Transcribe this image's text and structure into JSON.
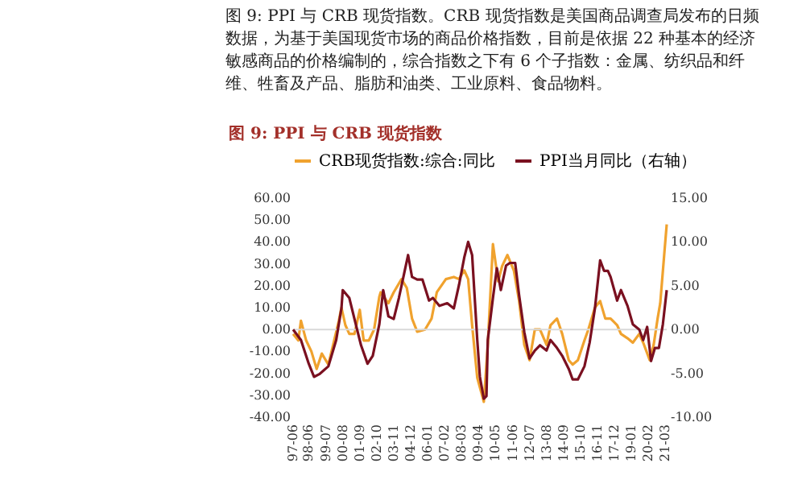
{
  "chart_data": {
    "type": "line",
    "title": "图 9: PPI 与 CRB 现货指数",
    "annotations": [
      "图 9: PPI 与 CRB 现货指数。CRB 现货指数是美国商品调查局发布的日频数据，为基于美国现货市场的商品价格指数，目前是依据 22 种基本的经济敏感商品的价格编制的，综合指数之下有 6 个子指数：金属、纺织品和纤维、牲畜及产品、脂肪和油类、工业原料、食品物料。"
    ],
    "series": [
      {
        "name": "CRB现货指数:综合:同比",
        "color": "#f0a22e",
        "x": [
          "1997-06",
          "1997-10",
          "1997-12",
          "1998-04",
          "1998-08",
          "1998-12",
          "1999-04",
          "1999-09",
          "2000-01",
          "2000-05",
          "2000-07",
          "2000-10",
          "2001-01",
          "2001-05",
          "2001-09",
          "2001-12",
          "2002-04",
          "2002-08",
          "2002-12",
          "2003-01",
          "2003-07",
          "2003-11",
          "2004-05",
          "2004-09",
          "2005-01",
          "2005-05",
          "2005-11",
          "2006-04",
          "2006-08",
          "2007-03",
          "2007-09",
          "2008-01",
          "2008-05",
          "2008-08",
          "2008-11",
          "2009-03",
          "2009-08",
          "2009-11",
          "2010-03",
          "2010-07",
          "2010-10",
          "2011-02",
          "2011-07",
          "2011-11",
          "2012-03",
          "2012-07",
          "2012-11",
          "2013-03",
          "2013-08",
          "2013-11",
          "2014-04",
          "2014-08",
          "2015-01",
          "2015-04",
          "2015-08",
          "2016-01",
          "2016-04",
          "2016-09",
          "2017-01",
          "2017-05",
          "2017-09",
          "2018-02",
          "2018-05",
          "2018-10",
          "2019-02",
          "2019-07",
          "2019-10",
          "2020-03",
          "2020-06",
          "2020-09",
          "2020-11",
          "2021-02",
          "2021-04"
        ],
        "values": [
          -2,
          -5,
          4,
          -5,
          -10,
          -18,
          -11,
          -16,
          -6,
          4,
          10,
          2,
          -2,
          -2,
          9,
          -5,
          -5,
          0,
          15,
          17,
          12,
          17,
          23,
          19,
          5,
          -1,
          0,
          5,
          17,
          23,
          24,
          23,
          27,
          23,
          2,
          -22,
          -33,
          -7,
          39,
          22,
          29,
          34,
          27,
          13,
          -7,
          -14,
          0,
          0,
          -7,
          2,
          5,
          -2,
          -14,
          -16,
          -14,
          -5,
          0,
          10,
          13,
          5,
          5,
          2,
          -2,
          -4,
          -6,
          -2,
          -6,
          -14,
          -7,
          5,
          12,
          34,
          48
        ]
      },
      {
        "name": "PPI当月同比（右轴）",
        "color": "#7a1020",
        "axis": "y2",
        "x": [
          "1997-06",
          "1997-12",
          "1998-06",
          "1998-10",
          "1999-02",
          "1999-09",
          "2000-03",
          "2000-07",
          "2000-08",
          "2001-01",
          "2001-05",
          "2001-10",
          "2002-03",
          "2002-07",
          "2002-12",
          "2003-03",
          "2003-07",
          "2003-11",
          "2004-03",
          "2004-07",
          "2004-10",
          "2005-01",
          "2005-05",
          "2005-09",
          "2006-02",
          "2006-05",
          "2006-10",
          "2007-04",
          "2007-09",
          "2008-01",
          "2008-05",
          "2008-08",
          "2008-11",
          "2009-03",
          "2009-05",
          "2009-08",
          "2009-10",
          "2009-11",
          "2010-03",
          "2010-06",
          "2010-09",
          "2011-01",
          "2011-04",
          "2011-08",
          "2011-11",
          "2012-03",
          "2012-07",
          "2012-11",
          "2013-03",
          "2013-08",
          "2013-11",
          "2014-04",
          "2014-08",
          "2015-01",
          "2015-04",
          "2015-08",
          "2016-01",
          "2016-05",
          "2016-09",
          "2017-01",
          "2017-04",
          "2017-07",
          "2017-09",
          "2018-02",
          "2018-05",
          "2018-10",
          "2019-02",
          "2019-07",
          "2019-10",
          "2020-01",
          "2020-04",
          "2020-07",
          "2020-10",
          "2021-01",
          "2021-04"
        ],
        "values": [
          0,
          -1.2,
          -3.9,
          -5.4,
          -5.1,
          -4.2,
          -1.2,
          2.4,
          4.5,
          3.6,
          1.2,
          -1.8,
          -3.9,
          -3.0,
          0.6,
          4.5,
          1.5,
          1.2,
          3.6,
          6.4,
          8.5,
          6.0,
          5.7,
          5.7,
          3.3,
          3.6,
          2.7,
          3.0,
          2.4,
          5.1,
          8.2,
          10.0,
          8.5,
          -1.2,
          -5.4,
          -7.9,
          -7.6,
          -1.2,
          3.6,
          7.0,
          4.5,
          7.3,
          7.6,
          7.6,
          3.9,
          -0.3,
          -3.3,
          -2.4,
          -1.8,
          -2.4,
          -1.2,
          -2.1,
          -3.0,
          -4.5,
          -5.7,
          -5.7,
          -4.2,
          -1.5,
          2.4,
          7.9,
          6.7,
          6.7,
          6.0,
          3.3,
          4.5,
          2.7,
          0.6,
          0,
          -1.2,
          0.3,
          -3.6,
          -2.1,
          -2.1,
          0.6,
          4.5
        ]
      }
    ],
    "xlim": [
      "1997-06",
      "2021-04"
    ],
    "xticks": [
      {
        "value": "1997-06",
        "label": "97-06"
      },
      {
        "value": "1998-06",
        "label": "98-06"
      },
      {
        "value": "1999-07",
        "label": "99-07"
      },
      {
        "value": "2000-08",
        "label": "00-08"
      },
      {
        "value": "2001-09",
        "label": "01-09"
      },
      {
        "value": "2002-10",
        "label": "02-10"
      },
      {
        "value": "2003-11",
        "label": "03-11"
      },
      {
        "value": "2004-12",
        "label": "04-12"
      },
      {
        "value": "2006-01",
        "label": "06-01"
      },
      {
        "value": "2007-02",
        "label": "07-02"
      },
      {
        "value": "2008-03",
        "label": "08-03"
      },
      {
        "value": "2009-04",
        "label": "09-04"
      },
      {
        "value": "2010-05",
        "label": "10-05"
      },
      {
        "value": "2011-06",
        "label": "11-06"
      },
      {
        "value": "2012-07",
        "label": "12-07"
      },
      {
        "value": "2013-08",
        "label": "13-08"
      },
      {
        "value": "2014-09",
        "label": "14-09"
      },
      {
        "value": "2015-10",
        "label": "15-10"
      },
      {
        "value": "2016-11",
        "label": "16-11"
      },
      {
        "value": "2017-12",
        "label": "17-12"
      },
      {
        "value": "2019-01",
        "label": "19-01"
      },
      {
        "value": "2020-02",
        "label": "20-02"
      },
      {
        "value": "2021-03",
        "label": "21-03"
      }
    ],
    "ylim": [
      -40,
      60
    ],
    "yticks": [
      {
        "value": -40,
        "label": "-40.00"
      },
      {
        "value": -30,
        "label": "-30.00"
      },
      {
        "value": -20,
        "label": "-20.00"
      },
      {
        "value": -10,
        "label": "-10.00"
      },
      {
        "value": 0,
        "label": "0.00"
      },
      {
        "value": 10,
        "label": "10.00"
      },
      {
        "value": 20,
        "label": "20.00"
      },
      {
        "value": 30,
        "label": "30.00"
      },
      {
        "value": 40,
        "label": "40.00"
      },
      {
        "value": 50,
        "label": "50.00"
      },
      {
        "value": 60,
        "label": "60.00"
      }
    ],
    "y2lim": [
      -10,
      15
    ],
    "y2ticks": [
      {
        "value": -10,
        "label": "-10.00"
      },
      {
        "value": -5,
        "label": "-5.00"
      },
      {
        "value": 0,
        "label": "0.00"
      },
      {
        "value": 5,
        "label": "5.00"
      },
      {
        "value": 10,
        "label": "10.00"
      },
      {
        "value": 15,
        "label": "15.00"
      }
    ],
    "ref_lines": [
      {
        "axis": "y",
        "value": 0,
        "color": "#d9d9d9"
      }
    ],
    "legend": "top",
    "marker": "none",
    "line_style": "solid"
  }
}
